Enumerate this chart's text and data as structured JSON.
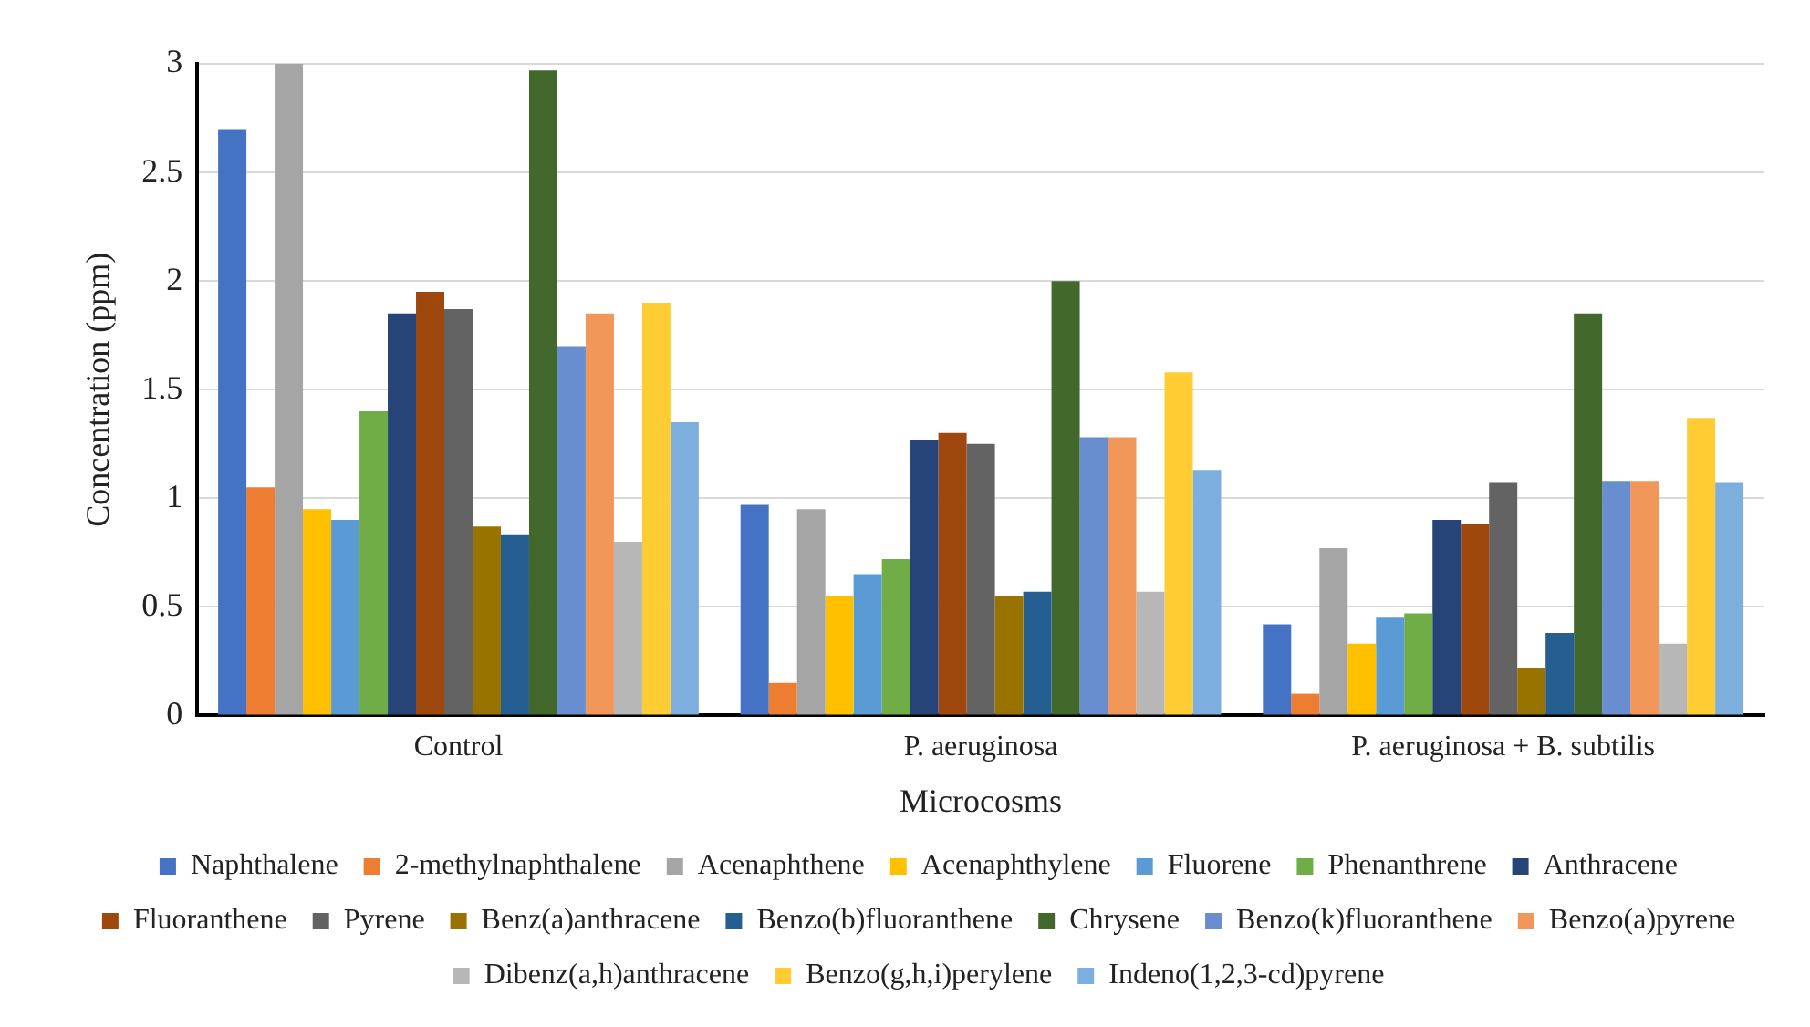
{
  "chart_data": {
    "type": "bar",
    "xlabel": "Microcosms",
    "ylabel": "Concentration (ppm)",
    "categories": [
      "Control",
      "P. aeruginosa",
      "P. aeruginosa + B. subtilis"
    ],
    "ylim": [
      0,
      3
    ],
    "yticks": [
      0,
      0.5,
      1,
      1.5,
      2,
      2.5,
      3
    ],
    "grid": "y",
    "legend": "bottom",
    "series": [
      {
        "name": "Naphthalene",
        "color": "#4472c4",
        "values": [
          2.7,
          0.97,
          0.42
        ]
      },
      {
        "name": "2-methylnaphthalene",
        "color": "#ed7d31",
        "values": [
          1.05,
          0.15,
          0.1
        ]
      },
      {
        "name": "Acenaphthene",
        "color": "#a5a5a5",
        "values": [
          3.0,
          0.95,
          0.77
        ]
      },
      {
        "name": "Acenaphthylene",
        "color": "#ffc000",
        "values": [
          0.95,
          0.55,
          0.33
        ]
      },
      {
        "name": "Fluorene",
        "color": "#5b9bd5",
        "values": [
          0.9,
          0.65,
          0.45
        ]
      },
      {
        "name": "Phenanthrene",
        "color": "#70ad47",
        "values": [
          1.4,
          0.72,
          0.47
        ]
      },
      {
        "name": "Anthracene",
        "color": "#264478",
        "values": [
          1.85,
          1.27,
          0.9
        ]
      },
      {
        "name": "Fluoranthene",
        "color": "#9e480e",
        "values": [
          1.95,
          1.3,
          0.88
        ]
      },
      {
        "name": "Pyrene",
        "color": "#636363",
        "values": [
          1.87,
          1.25,
          1.07
        ]
      },
      {
        "name": "Benz(a)anthracene",
        "color": "#997300",
        "values": [
          0.87,
          0.55,
          0.22
        ]
      },
      {
        "name": "Benzo(b)fluoranthene",
        "color": "#255e91",
        "values": [
          0.83,
          0.57,
          0.38
        ]
      },
      {
        "name": "Chrysene",
        "color": "#43682b",
        "values": [
          2.97,
          2.0,
          1.85
        ]
      },
      {
        "name": "Benzo(k)fluoranthene",
        "color": "#698ed0",
        "values": [
          1.7,
          1.28,
          1.08
        ]
      },
      {
        "name": "Benzo(a)pyrene",
        "color": "#f1975a",
        "values": [
          1.85,
          1.28,
          1.08
        ]
      },
      {
        "name": "Dibenz(a,h)anthracene",
        "color": "#b7b7b7",
        "values": [
          0.8,
          0.57,
          0.33
        ]
      },
      {
        "name": "Benzo(g,h,i)perylene",
        "color": "#ffcd33",
        "values": [
          1.9,
          1.58,
          1.37
        ]
      },
      {
        "name": "Indeno(1,2,3-cd)pyrene",
        "color": "#7cafdd",
        "values": [
          1.35,
          1.13,
          1.07
        ]
      }
    ]
  }
}
